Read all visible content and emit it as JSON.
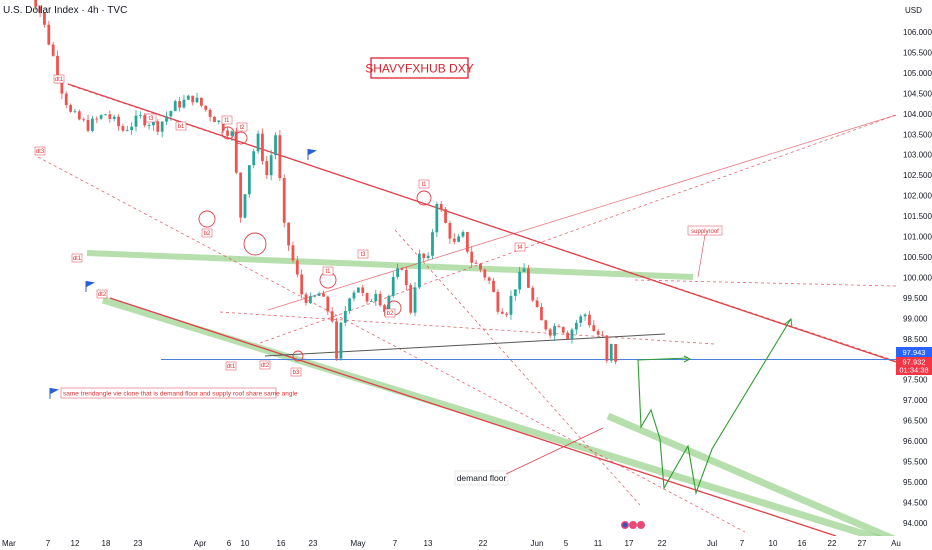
{
  "header": {
    "title": "U.S. Dollar Index · 4h · TVC"
  },
  "axis": {
    "currency_label": "USD"
  },
  "watermark": "SHAVYFXHUB DXY",
  "annotations": {
    "supply_roof": "supplyroof",
    "demand_floor": "demand floor",
    "note": "same trendangle vie clone  that is demand floor and supply roof share same angle"
  },
  "price_labels": {
    "blue_line": "97.943",
    "current": "97.932",
    "countdown": "01:34:38"
  },
  "colors": {
    "candle_up": "#26a69a",
    "candle_down": "#ef5350",
    "trend_red": "#e0404a",
    "band_green": "#7cc46a",
    "projection_green": "#2e9d2e",
    "support_blue": "#4a7fe0",
    "neckline": "#555555"
  },
  "chart_data": {
    "type": "candlestick",
    "title": "U.S. Dollar Index · 4h · TVC",
    "ylim": [
      93.8,
      107.0
    ],
    "y_ticks": [
      "106.000",
      "105.500",
      "105.000",
      "104.500",
      "104.000",
      "103.500",
      "103.000",
      "102.500",
      "102.000",
      "101.500",
      "101.000",
      "100.500",
      "100.000",
      "99.500",
      "99.000",
      "98.500",
      "98.000",
      "97.500",
      "97.000",
      "96.500",
      "96.000",
      "95.500",
      "95.000",
      "94.500",
      "94.000"
    ],
    "x_ticks": [
      "Mar",
      "7",
      "12",
      "18",
      "23",
      "Apr",
      "6",
      "10",
      "16",
      "23",
      "May",
      "7",
      "13",
      "22",
      "Jun",
      "5",
      "11",
      "17",
      "22",
      "Jul",
      "7",
      "10",
      "16",
      "22",
      "27",
      "Au"
    ],
    "close_path": [
      [
        0,
        107.2
      ],
      [
        3,
        106.5
      ],
      [
        6,
        105.4
      ],
      [
        8,
        104.6
      ],
      [
        10,
        104.0
      ],
      [
        14,
        103.7
      ],
      [
        18,
        104.0
      ],
      [
        22,
        103.6
      ],
      [
        26,
        103.9
      ],
      [
        30,
        103.7
      ],
      [
        34,
        104.2
      ],
      [
        38,
        104.4
      ],
      [
        41,
        104.1
      ],
      [
        44,
        103.8
      ],
      [
        47,
        103.5
      ],
      [
        49,
        101.5
      ],
      [
        51,
        102.8
      ],
      [
        53,
        103.4
      ],
      [
        55,
        102.5
      ],
      [
        57,
        103.5
      ],
      [
        59,
        101.2
      ],
      [
        61,
        100.4
      ],
      [
        63,
        99.6
      ],
      [
        65,
        99.4
      ],
      [
        67,
        99.6
      ],
      [
        69,
        99.2
      ],
      [
        70,
        99.0
      ],
      [
        71,
        97.9
      ],
      [
        72,
        98.8
      ],
      [
        74,
        99.6
      ],
      [
        76,
        99.8
      ],
      [
        78,
        99.3
      ],
      [
        80,
        99.7
      ],
      [
        82,
        99.2
      ],
      [
        84,
        99.9
      ],
      [
        86,
        100.3
      ],
      [
        88,
        99.2
      ],
      [
        90,
        100.5
      ],
      [
        92,
        100.4
      ],
      [
        94,
        101.9
      ],
      [
        96,
        101.3
      ],
      [
        98,
        100.8
      ],
      [
        100,
        101.0
      ],
      [
        102,
        100.4
      ],
      [
        104,
        100.2
      ],
      [
        106,
        99.9
      ],
      [
        108,
        99.3
      ],
      [
        110,
        99.2
      ],
      [
        112,
        99.8
      ],
      [
        114,
        100.2
      ],
      [
        116,
        99.4
      ],
      [
        118,
        98.9
      ],
      [
        120,
        98.7
      ],
      [
        122,
        98.9
      ],
      [
        124,
        98.6
      ],
      [
        126,
        98.9
      ],
      [
        128,
        99.1
      ],
      [
        130,
        98.7
      ],
      [
        132,
        98.5
      ],
      [
        133,
        97.9
      ],
      [
        134,
        98.3
      ],
      [
        135,
        98.0
      ],
      [
        136,
        98.1
      ]
    ],
    "annotation_labels": [
      "dt1",
      "dt3",
      "dt2",
      "dt1",
      "dt1",
      "dt2",
      "t1",
      "t2",
      "t1",
      "t3",
      "t1",
      "t4",
      "t3",
      "b1",
      "b2",
      "b3",
      "b2",
      "b3",
      "b1"
    ],
    "levels": [
      {
        "name": "blue_support",
        "y": 97.943
      },
      {
        "name": "current_price",
        "y": 97.932
      }
    ],
    "grid": false
  }
}
